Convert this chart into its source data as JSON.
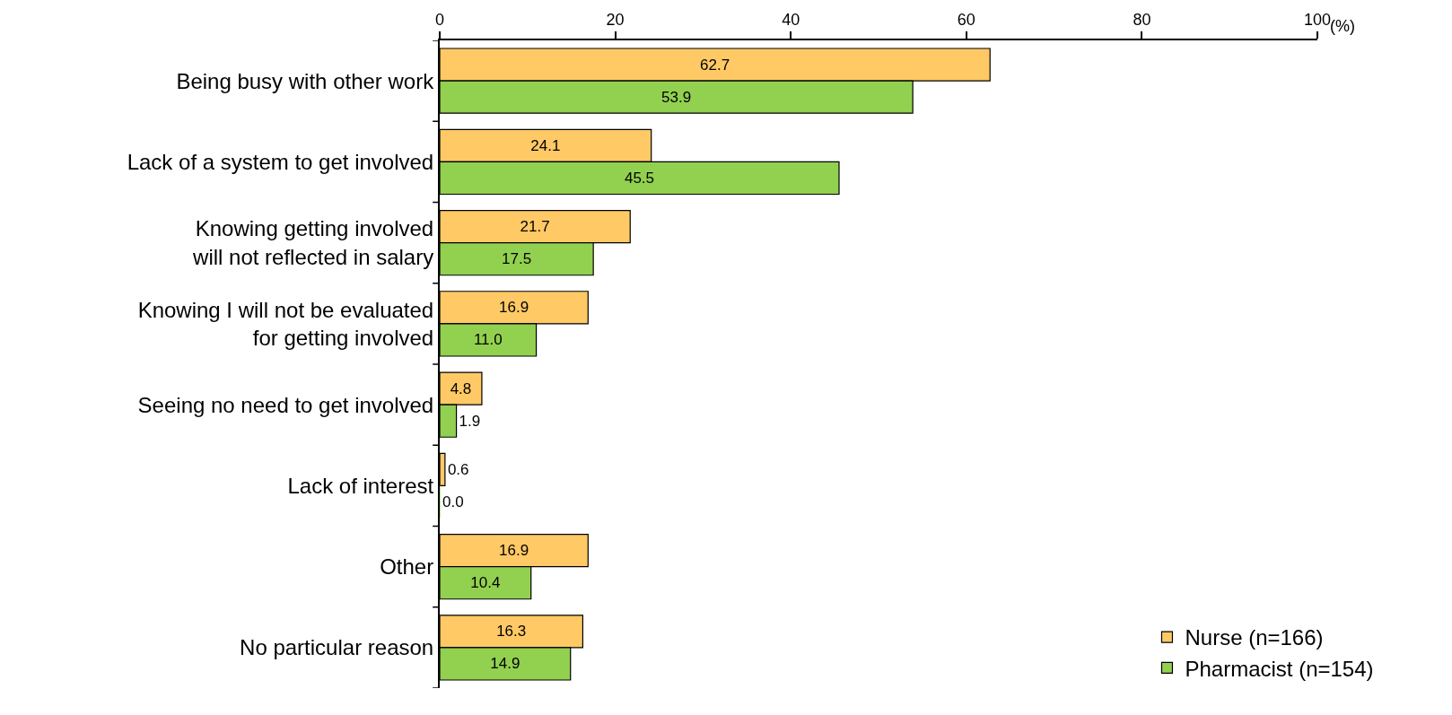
{
  "chart_data": {
    "type": "bar",
    "orientation": "horizontal",
    "xlabel": "(%)",
    "categories": [
      "Being busy with other work",
      "Lack of a system to get involved",
      "Knowing getting involved\nwill not reflected in salary",
      "Knowing I will not be evaluated\nfor getting involved",
      "Seeing no need to get involved",
      "Lack of interest",
      "Other",
      "No particular reason"
    ],
    "series": [
      {
        "name": "Nurse (n=166)",
        "color": "#ffc966",
        "values": [
          62.7,
          24.1,
          21.7,
          16.9,
          4.8,
          0.6,
          16.9,
          16.3
        ],
        "value_labels": [
          "62.7",
          "24.1",
          "21.7",
          "16.9",
          "4.8",
          "0.6",
          "16.9",
          "16.3"
        ]
      },
      {
        "name": "Pharmacist (n=154)",
        "color": "#92d050",
        "values": [
          53.9,
          45.5,
          17.5,
          11.0,
          1.9,
          0.0,
          10.4,
          14.9
        ],
        "value_labels": [
          "53.9",
          "45.5",
          "17.5",
          "11.0",
          "1.9",
          "0.0",
          "10.4",
          "14.9"
        ]
      }
    ],
    "xlim": [
      0,
      100
    ],
    "xticks": [
      0,
      20,
      40,
      60,
      80,
      100
    ],
    "legend": "bottom right"
  }
}
